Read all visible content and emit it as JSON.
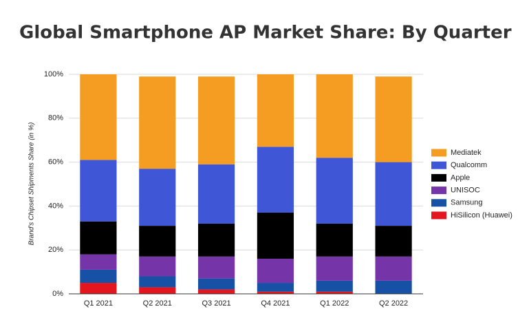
{
  "chart_data": {
    "type": "stacked_bar",
    "title": "Global Smartphone AP Market Share: By Quarter",
    "y_label": "Brand's Chipset Shipments Share (in %)",
    "categories": [
      "Q1 2021",
      "Q2 2021",
      "Q3 2021",
      "Q4 2021",
      "Q1 2022",
      "Q2 2022"
    ],
    "series": [
      {
        "name": "HiSilicon (Huawei)",
        "color": "#e3161f",
        "values": [
          5,
          3,
          2,
          1,
          1,
          0
        ]
      },
      {
        "name": "Samsung",
        "color": "#1651a6",
        "values": [
          6,
          5,
          5,
          4,
          5,
          6
        ]
      },
      {
        "name": "UNISOC",
        "color": "#7535a8",
        "values": [
          7,
          9,
          10,
          11,
          11,
          11
        ]
      },
      {
        "name": "Apple",
        "color": "#000000",
        "values": [
          15,
          14,
          15,
          21,
          15,
          14
        ]
      },
      {
        "name": "Qualcomm",
        "color": "#3f57d6",
        "values": [
          28,
          26,
          27,
          30,
          30,
          29
        ]
      },
      {
        "name": "Mediatek",
        "color": "#f59c22",
        "values": [
          39,
          42,
          40,
          33,
          38,
          39
        ]
      }
    ],
    "ylim": [
      0,
      100
    ],
    "yticks": [
      {
        "value": 0,
        "label": "0%"
      },
      {
        "value": 20,
        "label": "20%"
      },
      {
        "value": 40,
        "label": "40%"
      },
      {
        "value": 60,
        "label": "60%"
      },
      {
        "value": 80,
        "label": "80%"
      },
      {
        "value": 100,
        "label": "100%"
      }
    ],
    "grid": true,
    "legend": "right"
  }
}
